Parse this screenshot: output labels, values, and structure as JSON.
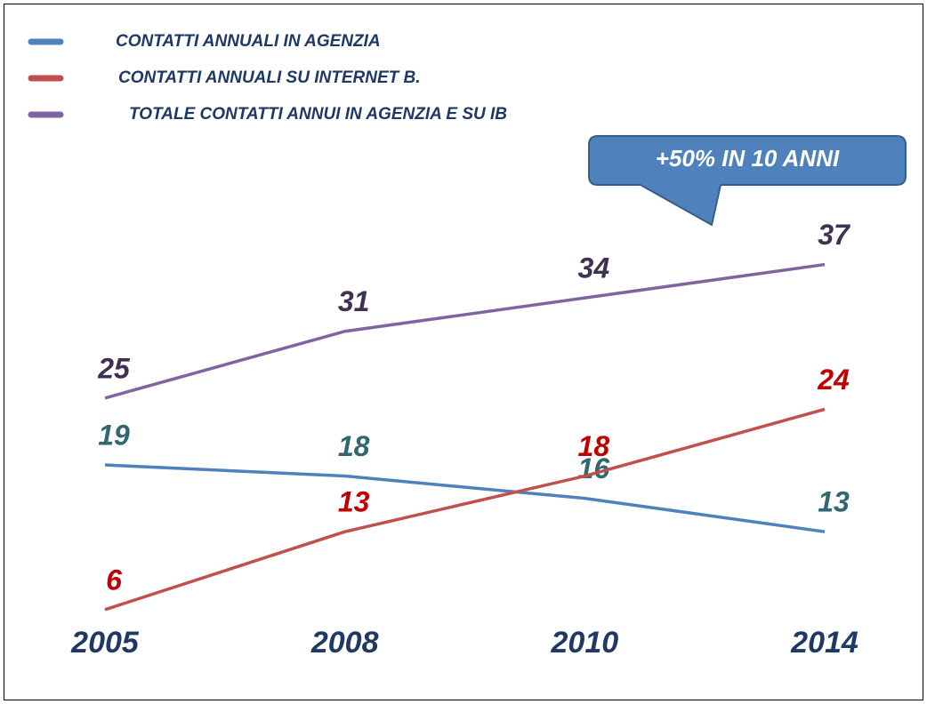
{
  "chart_data": {
    "type": "line",
    "categories": [
      "2005",
      "2008",
      "2010",
      "2014"
    ],
    "series": [
      {
        "name": "CONTATTI ANNUALI IN AGENZIA",
        "color": "#4f81bd",
        "label_color": "#31676f",
        "values": [
          19,
          18,
          16,
          13
        ]
      },
      {
        "name": "CONTATTI ANNUALI SU INTERNET B.",
        "color": "#c0504d",
        "label_color": "#c00000",
        "values": [
          6,
          13,
          18,
          24
        ]
      },
      {
        "name": "TOTALE CONTATTI ANNUI IN AGENZIA E SU IB",
        "color": "#8064a2",
        "label_color": "#403152",
        "values": [
          25,
          31,
          34,
          37
        ]
      }
    ],
    "ylim": [
      0,
      40
    ],
    "annotation": "+50% IN 10 ANNI",
    "legend": "top-left"
  }
}
